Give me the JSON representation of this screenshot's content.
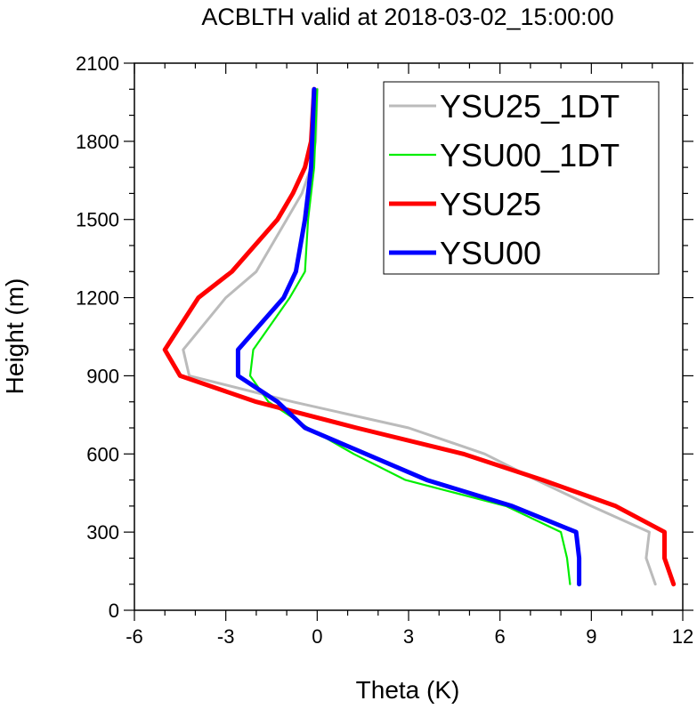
{
  "chart_data": {
    "type": "line",
    "title": "ACBLTH valid at 2018-03-02_15:00:00",
    "xlabel": "Theta (K)",
    "ylabel": "Height (m)",
    "xlim": [
      -6,
      12
    ],
    "ylim": [
      0,
      2100
    ],
    "xticks": [
      -6,
      -3,
      0,
      3,
      6,
      9,
      12
    ],
    "yticks": [
      0,
      300,
      600,
      900,
      1200,
      1500,
      1800,
      2100
    ],
    "xtick_labels": [
      "-6",
      "-3",
      "0",
      "3",
      "6",
      "9",
      "12"
    ],
    "ytick_labels": [
      "0",
      "300",
      "600",
      "900",
      "1200",
      "1500",
      "1800",
      "2100"
    ],
    "grid": false,
    "legend_position": "top-right",
    "series": [
      {
        "name": "YSU25_1DT",
        "color": "#bbbbbb",
        "points": [
          [
            11.1,
            100
          ],
          [
            10.8,
            200
          ],
          [
            10.9,
            300
          ],
          [
            9.0,
            400
          ],
          [
            7.2,
            500
          ],
          [
            5.5,
            600
          ],
          [
            3.0,
            700
          ],
          [
            -0.8,
            800
          ],
          [
            -4.2,
            900
          ],
          [
            -4.4,
            1000
          ],
          [
            -3.0,
            1200
          ],
          [
            -2.0,
            1300
          ],
          [
            -1.0,
            1500
          ],
          [
            -0.5,
            1600
          ],
          [
            -0.2,
            1700
          ],
          [
            -0.05,
            1800
          ],
          [
            0.0,
            2000
          ]
        ]
      },
      {
        "name": "YSU00_1DT",
        "color": "#00ee00",
        "points": [
          [
            8.3,
            100
          ],
          [
            8.2,
            200
          ],
          [
            8.0,
            300
          ],
          [
            6.2,
            400
          ],
          [
            2.9,
            500
          ],
          [
            1.2,
            600
          ],
          [
            -0.3,
            700
          ],
          [
            -1.6,
            800
          ],
          [
            -2.2,
            900
          ],
          [
            -2.1,
            1000
          ],
          [
            -0.9,
            1200
          ],
          [
            -0.4,
            1300
          ],
          [
            -0.3,
            1500
          ],
          [
            -0.2,
            1600
          ],
          [
            -0.1,
            1700
          ],
          [
            0.0,
            2000
          ]
        ]
      },
      {
        "name": "YSU25",
        "color": "#ff0000",
        "points": [
          [
            11.7,
            100
          ],
          [
            11.4,
            200
          ],
          [
            11.4,
            300
          ],
          [
            9.8,
            400
          ],
          [
            7.4,
            500
          ],
          [
            4.8,
            600
          ],
          [
            1.3,
            700
          ],
          [
            -2.0,
            800
          ],
          [
            -4.5,
            900
          ],
          [
            -5.0,
            1000
          ],
          [
            -3.9,
            1200
          ],
          [
            -2.8,
            1300
          ],
          [
            -1.3,
            1500
          ],
          [
            -0.8,
            1600
          ],
          [
            -0.4,
            1700
          ],
          [
            -0.2,
            1800
          ],
          [
            -0.1,
            2000
          ]
        ]
      },
      {
        "name": "YSU00",
        "color": "#0000ff",
        "points": [
          [
            8.6,
            100
          ],
          [
            8.6,
            200
          ],
          [
            8.5,
            300
          ],
          [
            6.4,
            400
          ],
          [
            3.6,
            500
          ],
          [
            1.6,
            600
          ],
          [
            -0.4,
            700
          ],
          [
            -1.3,
            800
          ],
          [
            -2.6,
            900
          ],
          [
            -2.6,
            1000
          ],
          [
            -1.1,
            1200
          ],
          [
            -0.7,
            1300
          ],
          [
            -0.4,
            1500
          ],
          [
            -0.3,
            1600
          ],
          [
            -0.2,
            1700
          ],
          [
            -0.1,
            2000
          ]
        ]
      }
    ]
  }
}
